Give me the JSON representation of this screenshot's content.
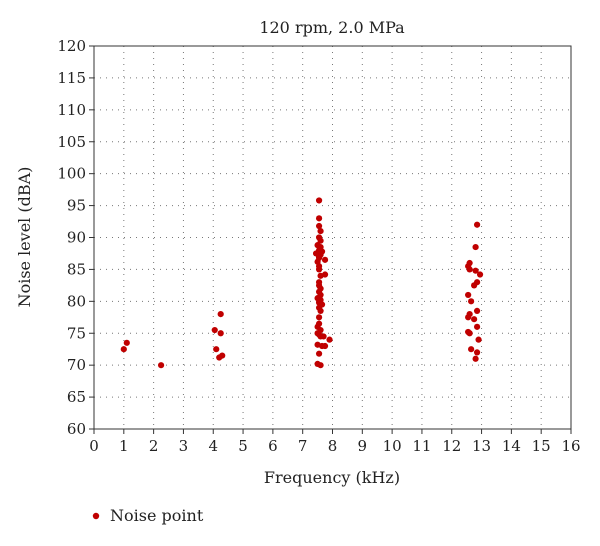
{
  "chart_data": {
    "type": "scatter",
    "title": "120 rpm, 2.0 MPa",
    "xlabel": "Frequency (kHz)",
    "ylabel": "Noise level (dBA)",
    "xlim": [
      0,
      16
    ],
    "ylim": [
      60,
      120
    ],
    "xticks": [
      0,
      1,
      2,
      3,
      4,
      5,
      6,
      7,
      8,
      9,
      10,
      11,
      12,
      13,
      14,
      15,
      16
    ],
    "yticks": [
      60,
      65,
      70,
      75,
      80,
      85,
      90,
      95,
      100,
      105,
      110,
      115,
      120
    ],
    "grid": true,
    "legend_position": "bottom-left",
    "series": [
      {
        "name": "Noise point",
        "color": "#c00000",
        "points": [
          [
            1.0,
            72.5
          ],
          [
            1.1,
            73.5
          ],
          [
            2.25,
            70.0
          ],
          [
            4.05,
            75.5
          ],
          [
            4.1,
            72.5
          ],
          [
            4.2,
            71.2
          ],
          [
            4.25,
            75.0
          ],
          [
            4.25,
            78.0
          ],
          [
            4.3,
            71.5
          ],
          [
            7.55,
            95.8
          ],
          [
            7.55,
            93.0
          ],
          [
            7.55,
            91.8
          ],
          [
            7.6,
            91.0
          ],
          [
            7.55,
            90.0
          ],
          [
            7.6,
            89.5
          ],
          [
            7.5,
            88.8
          ],
          [
            7.6,
            88.5
          ],
          [
            7.55,
            88.0
          ],
          [
            7.65,
            87.8
          ],
          [
            7.45,
            87.5
          ],
          [
            7.6,
            87.3
          ],
          [
            7.55,
            87.0
          ],
          [
            7.55,
            86.8
          ],
          [
            7.5,
            86.2
          ],
          [
            7.75,
            86.5
          ],
          [
            7.55,
            85.5
          ],
          [
            7.55,
            85.0
          ],
          [
            7.6,
            84.0
          ],
          [
            7.75,
            84.2
          ],
          [
            7.55,
            83.0
          ],
          [
            7.55,
            82.5
          ],
          [
            7.6,
            82.0
          ],
          [
            7.55,
            81.5
          ],
          [
            7.6,
            81.0
          ],
          [
            7.5,
            80.5
          ],
          [
            7.6,
            80.2
          ],
          [
            7.55,
            79.8
          ],
          [
            7.65,
            79.5
          ],
          [
            7.55,
            79.0
          ],
          [
            7.6,
            78.5
          ],
          [
            7.55,
            77.5
          ],
          [
            7.55,
            76.5
          ],
          [
            7.5,
            76.0
          ],
          [
            7.6,
            75.5
          ],
          [
            7.5,
            75.0
          ],
          [
            7.55,
            74.8
          ],
          [
            7.6,
            74.5
          ],
          [
            7.7,
            74.5
          ],
          [
            7.9,
            74.0
          ],
          [
            7.5,
            73.2
          ],
          [
            7.65,
            73.0
          ],
          [
            7.75,
            73.0
          ],
          [
            7.55,
            71.8
          ],
          [
            7.5,
            70.2
          ],
          [
            7.6,
            70.0
          ],
          [
            12.85,
            92.0
          ],
          [
            12.8,
            88.5
          ],
          [
            12.6,
            86.0
          ],
          [
            12.55,
            85.5
          ],
          [
            12.6,
            85.0
          ],
          [
            12.8,
            84.8
          ],
          [
            12.95,
            84.2
          ],
          [
            12.85,
            83.0
          ],
          [
            12.75,
            82.5
          ],
          [
            12.55,
            81.0
          ],
          [
            12.65,
            80.0
          ],
          [
            12.85,
            78.5
          ],
          [
            12.6,
            78.0
          ],
          [
            12.55,
            77.5
          ],
          [
            12.75,
            77.2
          ],
          [
            12.85,
            76.0
          ],
          [
            12.55,
            75.2
          ],
          [
            12.6,
            75.0
          ],
          [
            12.9,
            74.0
          ],
          [
            12.65,
            72.5
          ],
          [
            12.85,
            72.0
          ],
          [
            12.8,
            71.0
          ]
        ]
      }
    ]
  }
}
